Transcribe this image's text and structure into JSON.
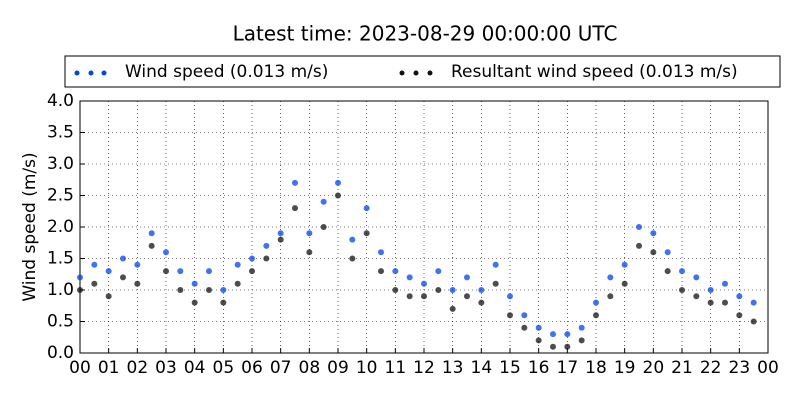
{
  "chart_data": {
    "type": "scatter",
    "title": "Latest time: 2023-08-29 00:00:00 UTC",
    "y_label": "Wind speed (m/s)",
    "x": [
      0,
      0.5,
      1,
      1.5,
      2,
      2.5,
      3,
      3.5,
      4,
      4.5,
      5,
      5.5,
      6,
      6.5,
      7,
      7.5,
      8,
      8.5,
      9,
      9.5,
      10,
      10.5,
      11,
      11.5,
      12,
      12.5,
      13,
      13.5,
      14,
      14.5,
      15,
      15.5,
      16,
      16.5,
      17,
      17.5,
      18,
      18.5,
      19,
      19.5,
      20,
      20.5,
      21,
      21.5,
      22,
      22.5,
      23,
      23.5
    ],
    "series": [
      {
        "name": "Wind speed (0.013 m/s)",
        "color": "#0044ee",
        "values": [
          1.2,
          1.4,
          1.3,
          1.5,
          1.4,
          1.9,
          1.6,
          1.3,
          1.1,
          1.3,
          1.0,
          1.4,
          1.5,
          1.7,
          1.9,
          2.7,
          1.9,
          2.4,
          2.7,
          1.8,
          2.3,
          1.6,
          1.3,
          1.2,
          1.1,
          1.3,
          1.0,
          1.2,
          1.0,
          1.4,
          0.9,
          0.6,
          0.4,
          0.3,
          0.3,
          0.4,
          0.8,
          1.2,
          1.4,
          2.0,
          1.9,
          1.6,
          1.3,
          1.2,
          1.0,
          1.1,
          0.9,
          0.8
        ]
      },
      {
        "name": "Resultant wind speed (0.013 m/s)",
        "color": "#111111",
        "values": [
          1.0,
          1.1,
          0.9,
          1.2,
          1.1,
          1.7,
          1.3,
          1.0,
          0.8,
          1.0,
          0.8,
          1.1,
          1.3,
          1.5,
          1.8,
          2.3,
          1.6,
          2.0,
          2.5,
          1.5,
          1.9,
          1.3,
          1.0,
          0.9,
          0.9,
          1.0,
          0.7,
          0.9,
          0.8,
          1.1,
          0.6,
          0.4,
          0.2,
          0.1,
          0.1,
          0.2,
          0.6,
          0.9,
          1.1,
          1.7,
          1.6,
          1.3,
          1.0,
          0.9,
          0.8,
          0.8,
          0.6,
          0.5
        ]
      }
    ],
    "xlim": [
      0,
      24
    ],
    "xticks": [
      {
        "value": 0,
        "label": "00"
      },
      {
        "value": 1,
        "label": "01"
      },
      {
        "value": 2,
        "label": "02"
      },
      {
        "value": 3,
        "label": "03"
      },
      {
        "value": 4,
        "label": "04"
      },
      {
        "value": 5,
        "label": "05"
      },
      {
        "value": 6,
        "label": "06"
      },
      {
        "value": 7,
        "label": "07"
      },
      {
        "value": 8,
        "label": "08"
      },
      {
        "value": 9,
        "label": "09"
      },
      {
        "value": 10,
        "label": "10"
      },
      {
        "value": 11,
        "label": "11"
      },
      {
        "value": 12,
        "label": "12"
      },
      {
        "value": 13,
        "label": "13"
      },
      {
        "value": 14,
        "label": "14"
      },
      {
        "value": 15,
        "label": "15"
      },
      {
        "value": 16,
        "label": "16"
      },
      {
        "value": 17,
        "label": "17"
      },
      {
        "value": 18,
        "label": "18"
      },
      {
        "value": 19,
        "label": "19"
      },
      {
        "value": 20,
        "label": "20"
      },
      {
        "value": 21,
        "label": "21"
      },
      {
        "value": 22,
        "label": "22"
      },
      {
        "value": 23,
        "label": "23"
      },
      {
        "value": 24,
        "label": "00"
      }
    ],
    "ylim": [
      0,
      4
    ],
    "yticks": [
      {
        "value": 0,
        "label": "0.0"
      },
      0.5,
      {
        "value": 1,
        "label": "1.0"
      },
      1.5,
      {
        "value": 2,
        "label": "2.0"
      },
      2.5,
      {
        "value": 3,
        "label": "3.0"
      },
      3.5,
      {
        "value": 4,
        "label": "4.0"
      }
    ],
    "grid": true
  }
}
